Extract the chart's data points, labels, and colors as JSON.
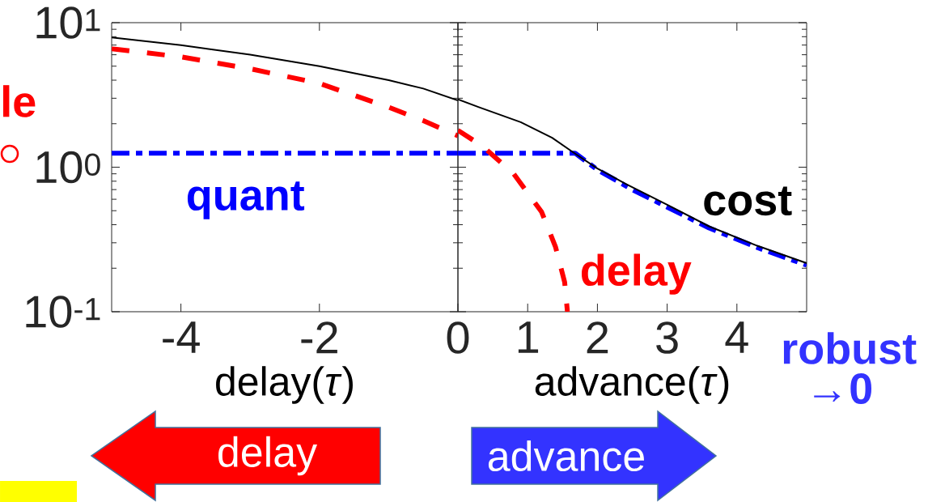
{
  "chart_data": [
    {
      "type": "line",
      "log": "y",
      "xlim": [
        -5,
        0
      ],
      "ylim": [
        0.1,
        10
      ],
      "xticks": [
        -4,
        -2,
        0
      ],
      "yticks": [
        {
          "value": 0.1,
          "label": "10$^{-1}$"
        },
        {
          "value": 1,
          "label": "10$^{0}$"
        },
        {
          "value": 10,
          "label": "10$^{1}$"
        }
      ],
      "xlabel": "delay(*τ*)",
      "series": [
        {
          "name": "quant",
          "color": "#0000ff",
          "line_style": "dashdot",
          "x": [
            -5,
            0
          ],
          "values": [
            1.25,
            1.25
          ]
        },
        {
          "color": "#ff0000",
          "line_style": "dashed",
          "x": [
            -5,
            -4,
            -3,
            -2,
            -1,
            -0.5,
            0
          ],
          "values": [
            6.6,
            5.8,
            4.8,
            3.8,
            2.6,
            2.1,
            1.65
          ]
        },
        {
          "color": "#000000",
          "line_style": "solid",
          "x": [
            -5,
            -4,
            -3,
            -2,
            -1,
            -0.5,
            0
          ],
          "values": [
            7.9,
            7.0,
            6.0,
            5.0,
            4.0,
            3.5,
            2.9
          ]
        }
      ],
      "annotations": [
        "le",
        "delay"
      ]
    },
    {
      "type": "line",
      "log": "y",
      "xlim": [
        0,
        5
      ],
      "ylim": [
        0.1,
        10
      ],
      "xticks": [
        1,
        2,
        3,
        4
      ],
      "yticks": [
        0.1,
        1,
        10
      ],
      "tick_labels": "x",
      "xlabel": "advance(*τ*)",
      "series": [
        {
          "color": "#0000ff",
          "line_style": "dashdot",
          "x": [
            0,
            1.68,
            2,
            2.5,
            3,
            3.6,
            4.3,
            5
          ],
          "values": [
            1.25,
            1.25,
            0.96,
            0.7,
            0.53,
            0.38,
            0.277,
            0.21
          ]
        },
        {
          "name": "delay",
          "color": "#ff0000",
          "line_style": "dashed",
          "x": [
            0,
            0.35,
            0.8,
            1.2,
            1.4,
            1.53,
            1.57
          ],
          "values": [
            1.8,
            1.4,
            0.9,
            0.49,
            0.28,
            0.16,
            0.1
          ]
        },
        {
          "name": "cost",
          "color": "#000000",
          "line_style": "solid",
          "x": [
            0,
            0.3,
            0.9,
            1.35,
            1.65,
            2,
            2.4,
            3,
            3.6,
            4.3,
            5
          ],
          "values": [
            2.95,
            2.6,
            2.05,
            1.6,
            1.27,
            0.98,
            0.77,
            0.55,
            0.39,
            0.285,
            0.217
          ]
        }
      ],
      "annotations": [
        "advance",
        "robust",
        "→0"
      ]
    }
  ]
}
